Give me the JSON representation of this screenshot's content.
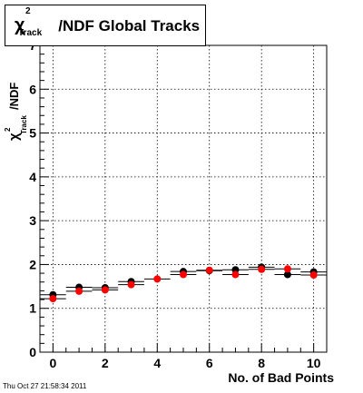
{
  "title": {
    "symbol": "χ",
    "superscript": "2",
    "subscript": "Track",
    "text": "/NDF  Global Tracks"
  },
  "y_axis_label": {
    "symbol": "χ",
    "superscript": "2",
    "subscript": "Track",
    "text": "/NDF"
  },
  "x_axis_label": "No. of Bad Points",
  "timestamp": "Thu Oct 27 21:58:34 2011",
  "colors": {
    "series_black": "#000000",
    "series_red": "#ff0000",
    "grid": "#000000"
  },
  "chart_data": {
    "type": "scatter",
    "title": "χ²_Track/NDF  Global Tracks",
    "xlabel": "No. of Bad Points",
    "ylabel": "χ²_Track/NDF",
    "xlim": [
      -0.5,
      10.5
    ],
    "ylim": [
      0,
      7
    ],
    "x_ticks": [
      0,
      2,
      4,
      6,
      8,
      10
    ],
    "y_ticks": [
      0,
      1,
      2,
      3,
      4,
      5,
      6,
      7
    ],
    "grid": true,
    "x_error_half_width": 0.5,
    "series": [
      {
        "color": "black",
        "x": [
          0,
          1,
          2,
          3,
          5,
          6,
          7,
          8,
          9,
          10
        ],
        "y": [
          1.31,
          1.48,
          1.47,
          1.61,
          1.84,
          1.86,
          1.88,
          1.94,
          1.77,
          1.83
        ]
      },
      {
        "color": "red",
        "x": [
          0,
          1,
          2,
          3,
          4,
          5,
          6,
          7,
          8,
          9,
          10
        ],
        "y": [
          1.22,
          1.39,
          1.42,
          1.54,
          1.67,
          1.77,
          1.87,
          1.77,
          1.89,
          1.9,
          1.76
        ]
      }
    ]
  }
}
